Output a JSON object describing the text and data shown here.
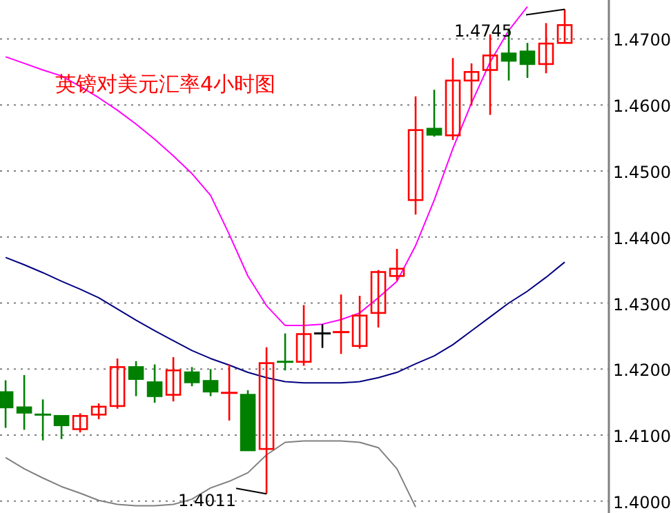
{
  "chart_data": {
    "type": "candlestick",
    "title": "英镑对美元汇率4小时图",
    "categories": [
      null,
      null,
      null,
      null,
      null,
      null,
      null,
      null,
      null,
      null,
      null,
      null,
      null,
      null,
      null,
      null,
      null,
      null,
      null,
      null,
      null,
      null,
      null,
      null,
      null,
      null,
      null,
      null,
      null,
      null,
      null
    ],
    "ohlc": [
      [
        1.4165,
        1.4183,
        1.4111,
        1.4142
      ],
      [
        1.4142,
        1.4191,
        1.4108,
        1.4134
      ],
      [
        1.4131,
        1.4154,
        1.4092,
        1.4131
      ],
      [
        1.4129,
        1.4129,
        1.4094,
        1.4115
      ],
      [
        1.4109,
        1.4133,
        1.4104,
        1.4129
      ],
      [
        1.4131,
        1.4148,
        1.4124,
        1.4143
      ],
      [
        1.4144,
        1.4216,
        1.414,
        1.4203
      ],
      [
        1.4203,
        1.4212,
        1.4159,
        1.4185
      ],
      [
        1.418,
        1.4207,
        1.4149,
        1.4159
      ],
      [
        1.4161,
        1.4218,
        1.4151,
        1.4198
      ],
      [
        1.4195,
        1.4203,
        1.4174,
        1.418
      ],
      [
        1.4182,
        1.42,
        1.4159,
        1.4166
      ],
      [
        1.4164,
        1.4207,
        1.4122,
        1.4164
      ],
      [
        1.4161,
        1.4168,
        1.4077,
        1.4077
      ],
      [
        1.4079,
        1.4233,
        1.4011,
        1.4209
      ],
      [
        1.4211,
        1.4254,
        1.4198,
        1.4211
      ],
      [
        1.4211,
        1.4297,
        1.4205,
        1.4253
      ],
      [
        1.4254,
        1.4268,
        1.4232,
        1.4254
      ],
      [
        1.4256,
        1.4313,
        1.4223,
        1.4256
      ],
      [
        1.4235,
        1.4311,
        1.4231,
        1.4281
      ],
      [
        1.4285,
        1.435,
        1.4263,
        1.4347
      ],
      [
        1.4341,
        1.4382,
        1.4334,
        1.4352
      ],
      [
        1.4456,
        1.4613,
        1.4434,
        1.4562
      ],
      [
        1.4564,
        1.4623,
        1.4552,
        1.4555
      ],
      [
        1.4554,
        1.4671,
        1.4547,
        1.4637
      ],
      [
        1.4637,
        1.4663,
        1.4599,
        1.465
      ],
      [
        1.4653,
        1.4707,
        1.4585,
        1.4675
      ],
      [
        1.4678,
        1.4716,
        1.4637,
        1.4667
      ],
      [
        1.4681,
        1.4694,
        1.4641,
        1.4662
      ],
      [
        1.4662,
        1.4724,
        1.4648,
        1.4693
      ],
      [
        1.4694,
        1.4745,
        1.4694,
        1.4721
      ]
    ],
    "colors": [
      "#008000",
      "#008000",
      "#008000",
      "#008000",
      "#ff0000",
      "#ff0000",
      "#ff0000",
      "#008000",
      "#008000",
      "#ff0000",
      "#008000",
      "#008000",
      "#ff0000",
      "#008000",
      "#ff0000",
      "#008000",
      "#ff0000",
      "#000000",
      "#ff0000",
      "#ff0000",
      "#ff0000",
      "#ff0000",
      "#ff0000",
      "#008000",
      "#ff0000",
      "#ff0000",
      "#ff0000",
      "#008000",
      "#008000",
      "#ff0000",
      "#ff0000"
    ],
    "series": [
      {
        "type": "line",
        "color": "#ff00ff",
        "values": [
          1.4673,
          1.4663,
          1.4653,
          1.4644,
          1.4628,
          1.4611,
          1.4592,
          1.4571,
          1.4548,
          1.4523,
          1.4496,
          1.4463,
          1.4404,
          1.4341,
          1.4296,
          1.4266,
          1.4266,
          1.4268,
          1.4275,
          1.4285,
          1.4308,
          1.4333,
          1.4387,
          1.4456,
          1.4534,
          1.4603,
          1.4665,
          1.4713,
          1.4749,
          null,
          null
        ]
      },
      {
        "type": "line",
        "color": "#000080",
        "values": [
          1.4369,
          1.4358,
          1.4346,
          1.4333,
          1.4321,
          1.4308,
          1.4291,
          1.4274,
          1.4258,
          1.4243,
          1.4228,
          1.4216,
          1.4206,
          1.4195,
          1.4187,
          1.4181,
          1.4179,
          1.4179,
          1.4179,
          1.4181,
          1.4187,
          1.4195,
          1.4208,
          1.422,
          1.4237,
          1.4258,
          1.4279,
          1.43,
          1.4318,
          1.4339,
          1.4362
        ]
      },
      {
        "type": "line",
        "color": "#808080",
        "values": [
          1.4066,
          1.4049,
          1.4035,
          1.4022,
          1.4012,
          1.4001,
          1.3995,
          1.3993,
          1.3993,
          1.3995,
          1.4003,
          1.402,
          1.403,
          1.4043,
          1.407,
          1.4089,
          1.4091,
          1.4091,
          1.4091,
          1.4089,
          1.4081,
          1.4049,
          1.3991,
          null,
          null,
          null,
          null,
          null,
          null,
          null,
          null
        ]
      }
    ],
    "annotations": [
      "1.4011",
      "1.4745"
    ],
    "ylim": [
      1.3982,
      1.4759
    ],
    "yticks": [
      {
        "value": 1.4,
        "label": "1.4000"
      },
      {
        "value": 1.41,
        "label": "1.4100"
      },
      {
        "value": 1.42,
        "label": "1.4200"
      },
      {
        "value": 1.43,
        "label": "1.4300"
      },
      {
        "value": 1.44,
        "label": "1.4400"
      },
      {
        "value": 1.45,
        "label": "1.4500"
      },
      {
        "value": 1.46,
        "label": "1.4600"
      },
      {
        "value": 1.47,
        "label": "1.4700"
      }
    ],
    "grid": "y",
    "tick_labels": "y"
  }
}
